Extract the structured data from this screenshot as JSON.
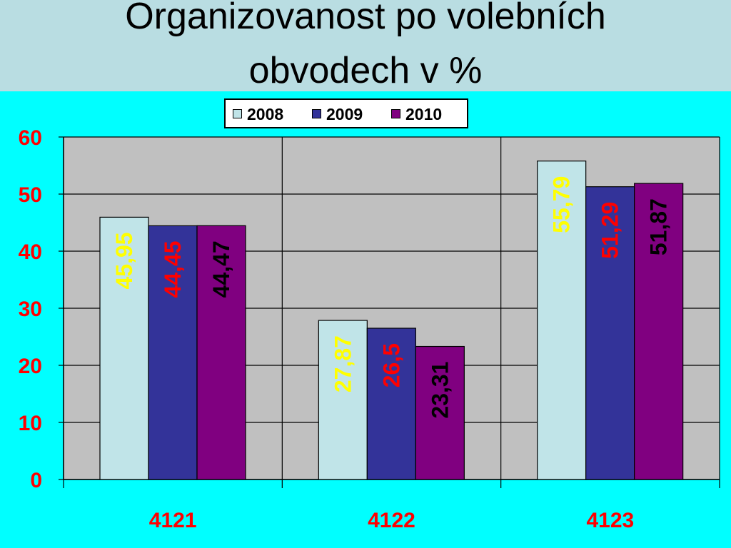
{
  "title": {
    "line1": "Organizovanost po volebních",
    "line2": "obvodech v %"
  },
  "colors": {
    "background": "#00ffff",
    "title_band": "#b9dde2",
    "plot_area": "#c0c0c0",
    "series_2008": "#c0e4e8",
    "series_2009": "#333399",
    "series_2010": "#800080",
    "label_2008": "#ffff00",
    "label_2009": "#ff0000",
    "label_2010": "#000000",
    "tick_labels": "#ff0000"
  },
  "chart_data": {
    "type": "bar",
    "title": "Organizovanost po volebních obvodech v %",
    "xlabel": "",
    "ylabel": "",
    "categories": [
      "4121",
      "4122",
      "4123"
    ],
    "series": [
      {
        "name": "2008",
        "values": [
          45.95,
          27.87,
          55.79
        ],
        "labels": [
          "45,95",
          "27,87",
          "55,79"
        ]
      },
      {
        "name": "2009",
        "values": [
          44.45,
          26.5,
          51.29
        ],
        "labels": [
          "44,45",
          "26,5",
          "51,29"
        ]
      },
      {
        "name": "2010",
        "values": [
          44.47,
          23.31,
          51.87
        ],
        "labels": [
          "44,47",
          "23,31",
          "51,87"
        ]
      }
    ],
    "ylim": [
      0,
      60
    ],
    "yticks": [
      "0",
      "10",
      "20",
      "30",
      "40",
      "50",
      "60"
    ],
    "grid": true,
    "legend_position": "top-center"
  }
}
